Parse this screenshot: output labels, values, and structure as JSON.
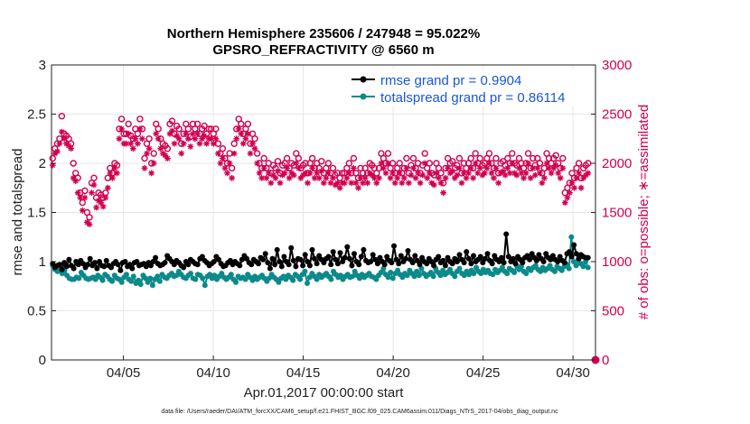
{
  "chart_data": {
    "type": "line",
    "title": "Northern Hemisphere 235606 / 247948 = 95.022%",
    "subtitle": "GPSRO_REFRACTIVITY @ 6560 m",
    "xlabel": "Apr.01,2017 00:00:00 start",
    "ylabel": "rmse and totalspread",
    "ylabel_right": "# of obs: o=possible; ∗=assimilated",
    "footer": "data file: /Users/raeder/DAI/ATM_forcXX/CAM6_setup/f.e21.FHIST_BGC.f09_025.CAM6assim.011/Diags_NTrS_2017-04/obs_diag_output.nc",
    "x_tick_values": [
      5,
      10,
      15,
      20,
      25,
      30
    ],
    "x_tick_labels": [
      "04/05",
      "04/10",
      "04/15",
      "04/20",
      "04/25",
      "04/30"
    ],
    "xlim": [
      1,
      31.25
    ],
    "ylim": [
      0,
      3
    ],
    "y_ticks": [
      0,
      0.5,
      1,
      1.5,
      2,
      2.5,
      3
    ],
    "y_tick_labels": [
      "0",
      "0.5",
      "1",
      "1.5",
      "2",
      "2.5",
      "3"
    ],
    "ylim_right": [
      0,
      3000
    ],
    "y_ticks_right": [
      0,
      500,
      1000,
      1500,
      2000,
      2500,
      3000
    ],
    "grid": true,
    "legend_position": "top-right",
    "colors": {
      "rmse": "#000000",
      "spread": "#0b8a8a",
      "obs": "#d1004f",
      "legend_text": "#1a56d6"
    },
    "series": [
      {
        "name": "rmse grand pr = 0.9904",
        "axis": "left",
        "values": [
          0.98,
          0.94,
          0.96,
          0.97,
          0.92,
          0.99,
          0.95,
          1.02,
          0.96,
          0.93,
          1.0,
          0.97,
          1.01,
          0.98,
          0.94,
          0.97,
          1.03,
          0.96,
          0.99,
          0.93,
          1.0,
          0.96,
          0.95,
          1.01,
          0.96,
          0.94,
          0.98,
          1.0,
          0.97,
          0.91,
          0.99,
          1.0,
          0.95,
          0.97,
          0.93,
          0.99,
          1.0,
          0.96,
          0.97,
          0.98,
          0.95,
          0.99,
          0.96,
          1.0,
          1.04,
          0.98,
          0.96,
          0.97,
          0.99,
          1.06,
          1.03,
          1.0,
          0.97,
          1.01,
          0.99,
          0.96,
          0.94,
          1.0,
          0.97,
          1.02,
          1.0,
          0.98,
          0.97,
          1.03,
          1.05,
          1.01,
          0.99,
          0.96,
          0.98,
          1.0,
          1.05,
          1.02,
          0.98,
          0.95,
          0.96,
          0.99,
          1.01,
          0.97,
          1.0,
          0.98,
          0.96,
          1.02,
          1.06,
          1.03,
          0.99,
          0.97,
          1.02,
          1.0,
          0.98,
          1.04,
          1.02,
          1.08,
          0.99,
          0.93,
          1.03,
          0.97,
          1.12,
          1.0,
          0.95,
          1.05,
          1.0,
          0.97,
          1.14,
          1.01,
          0.95,
          1.03,
          1.02,
          0.96,
          1.07,
          1.0,
          0.96,
          1.12,
          1.03,
          0.98,
          1.06,
          1.02,
          0.99,
          1.03,
          1.05,
          0.97,
          1.1,
          1.02,
          0.98,
          1.09,
          1.0,
          1.04,
          1.15,
          1.03,
          0.96,
          1.08,
          1.0,
          0.97,
          1.05,
          1.12,
          1.01,
          0.99,
          1.0,
          1.07,
          1.02,
          0.98,
          1.04,
          1.0,
          0.97,
          1.05,
          1.01,
          0.99,
          1.16,
          1.02,
          0.98,
          1.06,
          1.0,
          1.03,
          1.11,
          1.02,
          0.99,
          1.06,
          1.01,
          0.97,
          1.04,
          1.0,
          0.98,
          1.03,
          1.0,
          0.96,
          1.02,
          1.05,
          0.99,
          1.01,
          0.96,
          1.04,
          1.0,
          0.98,
          1.03,
          1.0,
          1.07,
          1.02,
          0.99,
          1.1,
          1.03,
          0.98,
          1.06,
          1.0,
          1.02,
          1.05,
          0.99,
          1.03,
          1.08,
          1.01,
          0.98,
          1.06,
          1.02,
          1.0,
          1.04,
          0.99,
          1.28,
          1.05,
          1.0,
          1.03,
          0.98,
          1.05,
          1.02,
          0.99,
          1.04,
          1.06,
          1.02,
          1.08,
          1.04,
          1.01,
          1.07,
          1.03,
          1.0,
          1.08,
          1.04,
          1.02,
          1.06,
          1.02,
          1.0,
          1.05,
          1.01,
          0.99,
          1.08,
          1.1,
          1.05,
          1.17,
          1.08,
          1.03,
          1.07,
          1.05,
          1.04,
          1.04
        ]
      },
      {
        "name": "totalspread grand pr = 0.86114",
        "axis": "left",
        "values": [
          0.96,
          0.92,
          0.9,
          0.93,
          0.88,
          0.91,
          0.86,
          0.83,
          0.82,
          0.82,
          0.84,
          0.83,
          0.89,
          0.86,
          0.83,
          0.82,
          0.83,
          0.84,
          0.82,
          0.86,
          0.84,
          0.81,
          0.87,
          0.85,
          0.82,
          0.8,
          0.86,
          0.83,
          0.82,
          0.79,
          0.84,
          0.87,
          0.82,
          0.8,
          0.85,
          0.78,
          0.81,
          0.77,
          0.86,
          0.83,
          0.79,
          0.83,
          0.76,
          0.82,
          0.85,
          0.8,
          0.87,
          0.84,
          0.83,
          0.86,
          0.88,
          0.85,
          0.86,
          0.9,
          0.87,
          0.84,
          0.83,
          0.86,
          0.88,
          0.83,
          0.82,
          0.87,
          0.86,
          0.83,
          0.76,
          0.85,
          0.87,
          0.83,
          0.86,
          0.82,
          0.85,
          0.88,
          0.84,
          0.82,
          0.84,
          0.87,
          0.82,
          0.79,
          0.85,
          0.83,
          0.84,
          0.82,
          0.87,
          0.84,
          0.81,
          0.85,
          0.82,
          0.84,
          0.86,
          0.83,
          0.8,
          0.83,
          0.87,
          0.84,
          0.82,
          0.79,
          0.83,
          0.85,
          0.82,
          0.86,
          0.84,
          0.81,
          0.87,
          0.85,
          0.82,
          0.87,
          0.9,
          0.78,
          0.84,
          0.88,
          0.85,
          0.82,
          0.87,
          0.84,
          0.86,
          0.88,
          0.85,
          0.82,
          0.9,
          0.87,
          0.84,
          0.86,
          0.82,
          0.85,
          0.87,
          0.84,
          0.85,
          0.9,
          0.86,
          0.83,
          0.87,
          0.84,
          0.86,
          0.88,
          0.85,
          0.84,
          0.82,
          0.86,
          0.89,
          0.93,
          0.87,
          0.84,
          0.89,
          0.83,
          0.88,
          0.91,
          0.87,
          0.84,
          0.88,
          0.86,
          0.91,
          0.88,
          0.85,
          0.9,
          0.86,
          0.93,
          0.88,
          0.85,
          0.87,
          0.89,
          0.85,
          0.93,
          0.89,
          0.86,
          0.91,
          0.87,
          0.89,
          0.92,
          0.88,
          0.85,
          0.9,
          0.93,
          0.88,
          0.86,
          0.9,
          0.87,
          0.91,
          0.88,
          0.94,
          0.9,
          0.88,
          0.92,
          0.89,
          0.91,
          0.88,
          0.87,
          0.92,
          0.89,
          0.91,
          0.94,
          0.9,
          0.88,
          0.93,
          0.91,
          0.89,
          0.96,
          0.92,
          0.95,
          0.9,
          0.88,
          0.93,
          0.91,
          0.94,
          0.96,
          0.92,
          0.9,
          0.94,
          0.91,
          0.93,
          0.96,
          0.92,
          0.9,
          0.95,
          0.93,
          0.91,
          0.95,
          0.97,
          0.93,
          1.25,
          1.0,
          0.96,
          1.02,
          0.98,
          0.95,
          1.0,
          0.94
        ]
      },
      {
        "name": "possible",
        "axis": "right",
        "marker": "circle-open",
        "values": [
          2050,
          2150,
          2200,
          2250,
          2480,
          2300,
          2280,
          2250,
          2200,
          2000,
          1900,
          1850,
          1700,
          1600,
          1720,
          1500,
          1450,
          1800,
          1850,
          1650,
          1700,
          1680,
          1650,
          1700,
          1850,
          1950,
          1900,
          2000,
          1980,
          2350,
          2450,
          2300,
          2300,
          2400,
          2280,
          2250,
          2350,
          2300,
          2450,
          2350,
          2050,
          2200,
          2250,
          2000,
          2100,
          2400,
          2350,
          2250,
          2200,
          2180,
          2150,
          2400,
          2430,
          2300,
          2380,
          2350,
          2200,
          2300,
          2400,
          2350,
          2270,
          2400,
          2350,
          2400,
          2300,
          2350,
          2380,
          2300,
          2350,
          2350,
          2300,
          2350,
          2200,
          2100,
          2150,
          2050,
          2000,
          2100,
          1950,
          2200,
          2350,
          2450,
          2400,
          2300,
          2350,
          2400,
          2200,
          2300,
          2250,
          2100,
          2000,
          1950,
          2050,
          1950,
          2000,
          1900,
          1980,
          1950,
          2020,
          1900,
          1980,
          2000,
          2050,
          1950,
          2000,
          1980,
          2100,
          2050,
          1950,
          1980,
          2000,
          1900,
          2000,
          2050,
          1950,
          2000,
          1950,
          2020,
          1900,
          1950,
          2000,
          1900,
          1950,
          1880,
          1900,
          1850,
          1900,
          1900,
          1950,
          2000,
          1900,
          2050,
          1900,
          1850,
          1950,
          1900,
          1950,
          1900,
          2000,
          1980,
          1950,
          1900,
          1950,
          2100,
          2050,
          2000,
          2100,
          1950,
          2000,
          1900,
          1950,
          2000,
          1900,
          1950,
          2050,
          1900,
          1980,
          2050,
          1950,
          2000,
          1900,
          1980,
          2100,
          1950,
          2000,
          1900,
          1880,
          2000,
          1950,
          1900,
          1800,
          1950,
          2050,
          2000,
          2020,
          1950,
          1980,
          2050,
          1900,
          2000,
          1950,
          2000,
          2050,
          1950,
          2100,
          2000,
          2050,
          1980,
          2000,
          2050,
          2100,
          2000,
          1950,
          2050,
          1900,
          2000,
          2020,
          1980,
          2050,
          2000,
          2100,
          2000,
          1980,
          2050,
          2000,
          1950,
          2000,
          2100,
          1950,
          2050,
          1980,
          2050,
          2000,
          1900,
          1950,
          2100,
          2050,
          2000,
          2050,
          2080,
          2000,
          1950,
          2050,
          1700,
          1750,
          1800,
          1900,
          1850,
          1950,
          2000,
          1850,
          1950,
          1980,
          2000
        ]
      },
      {
        "name": "assimilated",
        "axis": "right",
        "marker": "asterisk",
        "values": [
          1980,
          2100,
          2120,
          2200,
          2320,
          2250,
          2200,
          2180,
          2150,
          1850,
          1820,
          1700,
          1650,
          1520,
          1650,
          1400,
          1380,
          1700,
          1780,
          1550,
          1620,
          1600,
          1560,
          1650,
          1750,
          1900,
          1850,
          1950,
          1900,
          2250,
          2350,
          2200,
          2200,
          2300,
          2200,
          2150,
          2250,
          2200,
          2350,
          2250,
          1950,
          2100,
          2150,
          1900,
          2000,
          2300,
          2250,
          2150,
          2100,
          2080,
          2050,
          2300,
          2330,
          2200,
          2280,
          2250,
          2100,
          2200,
          2300,
          2250,
          2170,
          2300,
          2250,
          2300,
          2200,
          2250,
          2280,
          2200,
          2250,
          2250,
          2200,
          2250,
          2100,
          2000,
          2050,
          1950,
          1900,
          2000,
          1850,
          2100,
          2250,
          2350,
          2300,
          2200,
          2250,
          2300,
          2100,
          2200,
          2150,
          2000,
          1900,
          1850,
          1950,
          1850,
          1900,
          1800,
          1880,
          1850,
          1920,
          1800,
          1880,
          1900,
          1950,
          1850,
          1900,
          1880,
          2000,
          1950,
          1850,
          1880,
          1900,
          1800,
          1900,
          1950,
          1850,
          1900,
          1850,
          1920,
          1800,
          1850,
          1900,
          1800,
          1850,
          1780,
          1800,
          1750,
          1800,
          1800,
          1850,
          1900,
          1800,
          1950,
          1800,
          1750,
          1850,
          1800,
          1850,
          1800,
          1900,
          1880,
          1850,
          1800,
          1850,
          2000,
          1950,
          1900,
          2000,
          1850,
          1900,
          1800,
          1850,
          1900,
          1800,
          1850,
          1950,
          1800,
          1880,
          1950,
          1850,
          1900,
          1800,
          1880,
          2000,
          1850,
          1900,
          1800,
          1780,
          1900,
          1850,
          1800,
          1700,
          1850,
          1950,
          1900,
          1920,
          1850,
          1880,
          1950,
          1800,
          1900,
          1850,
          1900,
          1950,
          1850,
          2000,
          1900,
          1950,
          1880,
          1900,
          1950,
          2000,
          1900,
          1850,
          1950,
          1800,
          1900,
          1920,
          1880,
          1950,
          1900,
          2000,
          1900,
          1880,
          1950,
          1900,
          1850,
          1900,
          2000,
          1850,
          1950,
          1880,
          1950,
          1900,
          1800,
          1850,
          2000,
          1950,
          1900,
          1950,
          1980,
          1900,
          1850,
          1950,
          1600,
          1650,
          1700,
          1800,
          1750,
          1850,
          1900,
          1750,
          1850,
          1880,
          1900
        ]
      }
    ],
    "legend": [
      {
        "label": "rmse grand pr = 0.9904",
        "color": "#000000"
      },
      {
        "label": "totalspread grand pr = 0.86114",
        "color": "#0b8a8a"
      }
    ]
  }
}
